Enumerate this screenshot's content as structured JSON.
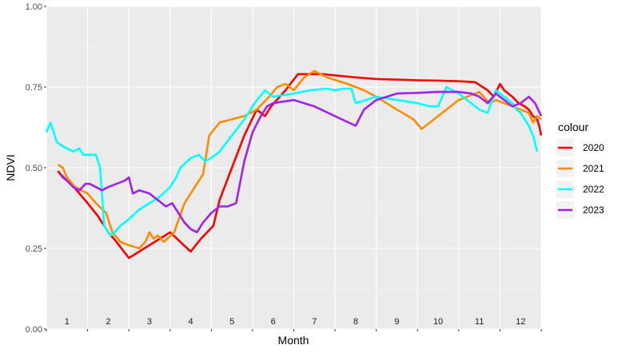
{
  "chart_data": {
    "type": "line",
    "xlabel": "Month",
    "ylabel": "NDVI",
    "xlim": [
      0.5,
      12.5
    ],
    "ylim": [
      0,
      1
    ],
    "y_ticks": [
      "0.00",
      "0.25",
      "0.50",
      "0.75",
      "1.00"
    ],
    "y_tick_values": [
      0,
      0.25,
      0.5,
      0.75,
      1
    ],
    "month_labels": [
      "1",
      "2",
      "3",
      "4",
      "5",
      "6",
      "7",
      "8",
      "9",
      "10",
      "11",
      "12"
    ],
    "grid": true,
    "legend": {
      "title": "colour",
      "position": "right"
    },
    "series": [
      {
        "name": "2020",
        "color": "#FF0000",
        "x": [
          0.78,
          0.9,
          1.1,
          1.3,
          1.5,
          1.75,
          2.0,
          2.2,
          2.5,
          2.75,
          3.0,
          3.25,
          3.5,
          3.75,
          4.0,
          4.25,
          4.55,
          4.7,
          5.0,
          5.3,
          5.6,
          5.8,
          5.95,
          6.3,
          6.6,
          6.85,
          7.2,
          7.6,
          8.0,
          8.5,
          9.0,
          9.5,
          10.0,
          10.5,
          10.9,
          11.2,
          11.35,
          11.5,
          11.6,
          11.7,
          11.8,
          11.95,
          12.1,
          12.2,
          12.3,
          12.4,
          12.45,
          12.5
        ],
        "y": [
          0.49,
          0.47,
          0.45,
          0.42,
          0.39,
          0.35,
          0.3,
          0.27,
          0.22,
          0.24,
          0.26,
          0.28,
          0.3,
          0.27,
          0.24,
          0.28,
          0.32,
          0.4,
          0.5,
          0.6,
          0.68,
          0.66,
          0.69,
          0.74,
          0.79,
          0.79,
          0.79,
          0.785,
          0.78,
          0.775,
          0.773,
          0.771,
          0.77,
          0.768,
          0.765,
          0.74,
          0.72,
          0.76,
          0.74,
          0.73,
          0.72,
          0.7,
          0.69,
          0.68,
          0.66,
          0.65,
          0.63,
          0.6
        ]
      },
      {
        "name": "2021",
        "color": "#FF8C00",
        "x": [
          0.78,
          0.9,
          1.0,
          1.2,
          1.5,
          1.7,
          1.95,
          2.1,
          2.3,
          2.5,
          2.75,
          2.9,
          3.0,
          3.1,
          3.2,
          3.35,
          3.6,
          3.85,
          4.1,
          4.3,
          4.45,
          4.7,
          5.0,
          5.3,
          5.6,
          5.9,
          6.1,
          6.3,
          6.5,
          6.75,
          7.0,
          7.3,
          7.8,
          8.2,
          8.5,
          9.0,
          9.4,
          9.6,
          10.0,
          10.5,
          11.0,
          11.1,
          11.25,
          11.4,
          11.6,
          11.8,
          12.0,
          12.2,
          12.3,
          12.4,
          12.5
        ],
        "y": [
          0.51,
          0.5,
          0.47,
          0.44,
          0.42,
          0.39,
          0.36,
          0.3,
          0.27,
          0.26,
          0.25,
          0.27,
          0.3,
          0.28,
          0.29,
          0.27,
          0.3,
          0.39,
          0.44,
          0.48,
          0.6,
          0.64,
          0.65,
          0.66,
          0.68,
          0.72,
          0.75,
          0.76,
          0.74,
          0.78,
          0.8,
          0.78,
          0.76,
          0.74,
          0.72,
          0.68,
          0.65,
          0.62,
          0.66,
          0.71,
          0.735,
          0.72,
          0.7,
          0.71,
          0.7,
          0.69,
          0.68,
          0.67,
          0.64,
          0.66,
          0.65
        ]
      },
      {
        "name": "2022",
        "color": "#00FFFF",
        "x": [
          0.5,
          0.6,
          0.75,
          0.85,
          1.0,
          1.15,
          1.3,
          1.4,
          1.5,
          1.7,
          1.8,
          1.85,
          1.9,
          2.05,
          2.15,
          2.3,
          2.5,
          2.75,
          3.0,
          3.25,
          3.5,
          3.65,
          3.75,
          4.0,
          4.2,
          4.35,
          4.5,
          4.7,
          5.0,
          5.3,
          5.55,
          5.8,
          6.0,
          6.5,
          6.9,
          7.3,
          7.5,
          7.7,
          7.9,
          8.0,
          8.5,
          9.0,
          9.5,
          9.8,
          10.0,
          10.2,
          10.5,
          10.8,
          11.0,
          11.2,
          11.4,
          11.6,
          11.8,
          11.9,
          12.0,
          12.1,
          12.2,
          12.3,
          12.4
        ],
        "y": [
          0.61,
          0.64,
          0.58,
          0.57,
          0.56,
          0.55,
          0.56,
          0.54,
          0.54,
          0.54,
          0.5,
          0.42,
          0.32,
          0.29,
          0.3,
          0.32,
          0.34,
          0.37,
          0.39,
          0.41,
          0.44,
          0.47,
          0.5,
          0.53,
          0.54,
          0.52,
          0.53,
          0.55,
          0.6,
          0.65,
          0.7,
          0.74,
          0.72,
          0.73,
          0.74,
          0.745,
          0.74,
          0.745,
          0.745,
          0.7,
          0.72,
          0.71,
          0.7,
          0.69,
          0.69,
          0.75,
          0.73,
          0.7,
          0.68,
          0.67,
          0.74,
          0.72,
          0.7,
          0.68,
          0.67,
          0.65,
          0.63,
          0.6,
          0.55
        ]
      },
      {
        "name": "2023",
        "color": "#A020F0",
        "x": [
          0.85,
          1.0,
          1.15,
          1.3,
          1.45,
          1.55,
          1.7,
          1.85,
          2.0,
          2.2,
          2.4,
          2.5,
          2.6,
          2.75,
          3.0,
          3.2,
          3.4,
          3.55,
          3.7,
          3.85,
          4.0,
          4.15,
          4.3,
          4.5,
          4.7,
          4.9,
          5.1,
          5.3,
          5.5,
          5.7,
          5.85,
          6.0,
          6.5,
          7.0,
          7.5,
          8.0,
          8.2,
          8.5,
          9.0,
          9.5,
          10.0,
          10.5,
          10.8,
          11.0,
          11.2,
          11.4,
          11.6,
          11.8,
          12.0,
          12.2,
          12.35,
          12.5
        ],
        "y": [
          0.48,
          0.46,
          0.44,
          0.43,
          0.45,
          0.45,
          0.44,
          0.43,
          0.44,
          0.45,
          0.46,
          0.47,
          0.42,
          0.43,
          0.42,
          0.4,
          0.38,
          0.39,
          0.36,
          0.33,
          0.31,
          0.3,
          0.33,
          0.36,
          0.38,
          0.38,
          0.39,
          0.52,
          0.61,
          0.66,
          0.69,
          0.7,
          0.71,
          0.69,
          0.66,
          0.63,
          0.68,
          0.71,
          0.73,
          0.732,
          0.735,
          0.735,
          0.73,
          0.72,
          0.7,
          0.73,
          0.71,
          0.69,
          0.7,
          0.72,
          0.7,
          0.66
        ]
      }
    ]
  }
}
